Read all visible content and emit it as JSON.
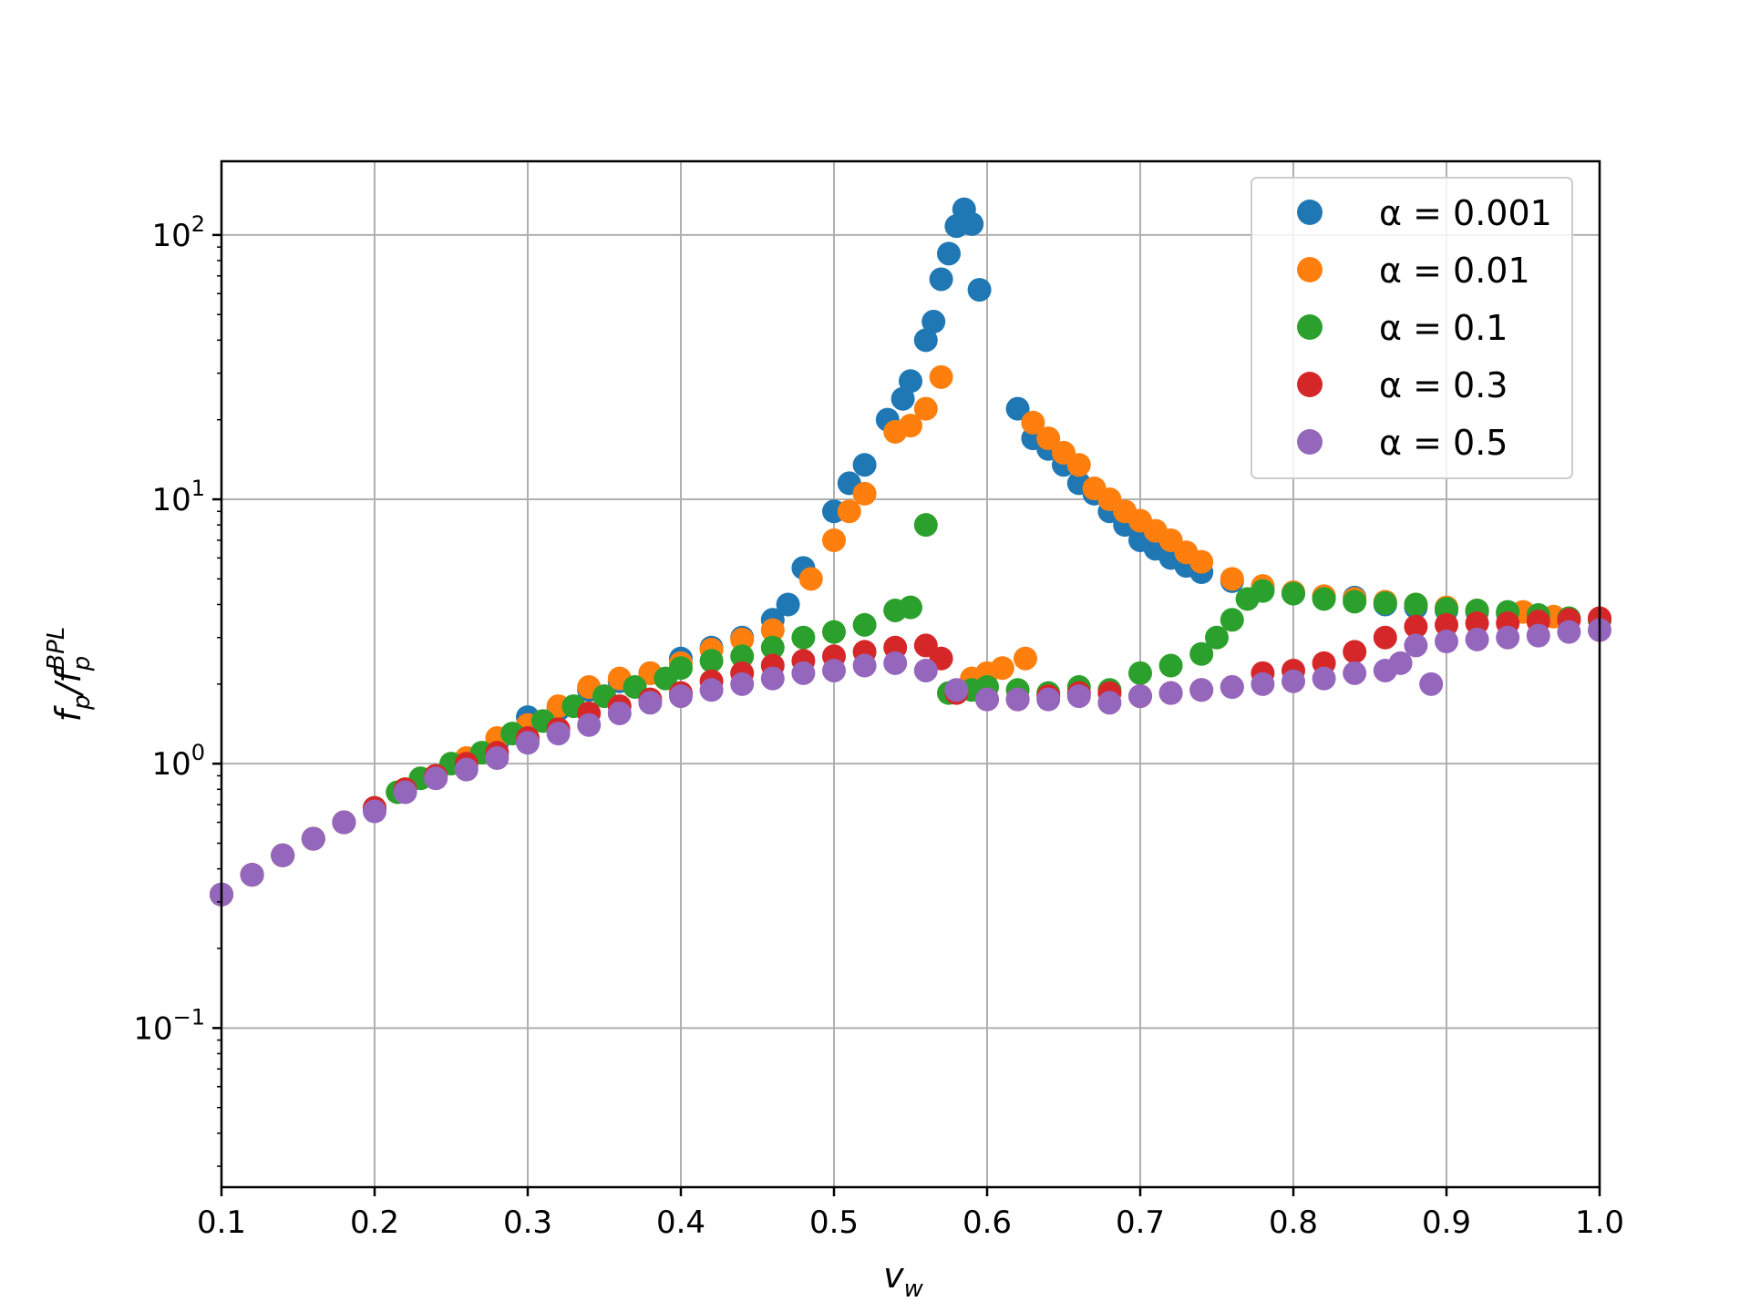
{
  "chart_data": {
    "type": "scatter",
    "title": "",
    "xlabel": "v_w",
    "ylabel": "f_p/f_p^BPL",
    "x_scale": "linear",
    "y_scale": "log",
    "xlim": [
      0.1,
      1.0
    ],
    "ylim": [
      0.025,
      190
    ],
    "grid": true,
    "legend_position": "top-right",
    "x_ticks": [
      "0.1",
      "0.2",
      "0.3",
      "0.4",
      "0.5",
      "0.6",
      "0.7",
      "0.8",
      "0.9",
      "1.0"
    ],
    "y_ticks": [
      {
        "base": "10",
        "exp": "−1",
        "value": 0.1
      },
      {
        "base": "10",
        "exp": "0",
        "value": 1
      },
      {
        "base": "10",
        "exp": "1",
        "value": 10
      },
      {
        "base": "10",
        "exp": "2",
        "value": 100
      }
    ],
    "series": [
      {
        "name": "α = 0.001",
        "color": "#1f77b4",
        "points": [
          [
            0.1,
            0.32
          ],
          [
            0.12,
            0.38
          ],
          [
            0.14,
            0.45
          ],
          [
            0.16,
            0.52
          ],
          [
            0.18,
            0.6
          ],
          [
            0.2,
            0.68
          ],
          [
            0.22,
            0.8
          ],
          [
            0.24,
            0.9
          ],
          [
            0.26,
            1.0
          ],
          [
            0.28,
            1.2
          ],
          [
            0.3,
            1.5
          ],
          [
            0.32,
            1.6
          ],
          [
            0.34,
            1.9
          ],
          [
            0.36,
            2.05
          ],
          [
            0.38,
            2.2
          ],
          [
            0.4,
            2.5
          ],
          [
            0.42,
            2.75
          ],
          [
            0.44,
            3.0
          ],
          [
            0.46,
            3.5
          ],
          [
            0.47,
            4.0
          ],
          [
            0.48,
            5.5
          ],
          [
            0.5,
            9.0
          ],
          [
            0.51,
            11.5
          ],
          [
            0.52,
            13.5
          ],
          [
            0.535,
            20
          ],
          [
            0.545,
            24
          ],
          [
            0.55,
            28
          ],
          [
            0.56,
            40
          ],
          [
            0.565,
            47
          ],
          [
            0.57,
            68
          ],
          [
            0.575,
            85
          ],
          [
            0.58,
            108
          ],
          [
            0.585,
            125
          ],
          [
            0.59,
            110
          ],
          [
            0.595,
            62
          ],
          [
            0.62,
            22
          ],
          [
            0.63,
            17
          ],
          [
            0.64,
            15.5
          ],
          [
            0.65,
            13.5
          ],
          [
            0.66,
            11.5
          ],
          [
            0.67,
            10.5
          ],
          [
            0.68,
            9.0
          ],
          [
            0.69,
            8.0
          ],
          [
            0.7,
            7.0
          ],
          [
            0.71,
            6.5
          ],
          [
            0.72,
            6.0
          ],
          [
            0.73,
            5.6
          ],
          [
            0.74,
            5.3
          ],
          [
            0.76,
            4.9
          ],
          [
            0.78,
            4.6
          ],
          [
            0.8,
            4.4
          ],
          [
            0.82,
            4.3
          ],
          [
            0.84,
            4.25
          ],
          [
            0.86,
            4.0
          ],
          [
            0.88,
            3.9
          ],
          [
            0.9,
            3.8
          ],
          [
            0.92,
            3.75
          ],
          [
            0.94,
            3.7
          ],
          [
            0.96,
            3.6
          ],
          [
            0.98,
            3.5
          ],
          [
            1.0,
            3.5
          ]
        ]
      },
      {
        "name": "α = 0.01",
        "color": "#ff7f0e",
        "points": [
          [
            0.1,
            0.32
          ],
          [
            0.12,
            0.38
          ],
          [
            0.14,
            0.45
          ],
          [
            0.16,
            0.52
          ],
          [
            0.18,
            0.6
          ],
          [
            0.2,
            0.68
          ],
          [
            0.22,
            0.8
          ],
          [
            0.24,
            0.9
          ],
          [
            0.26,
            1.05
          ],
          [
            0.28,
            1.25
          ],
          [
            0.3,
            1.4
          ],
          [
            0.32,
            1.65
          ],
          [
            0.34,
            1.95
          ],
          [
            0.36,
            2.1
          ],
          [
            0.38,
            2.2
          ],
          [
            0.4,
            2.4
          ],
          [
            0.42,
            2.7
          ],
          [
            0.44,
            2.95
          ],
          [
            0.46,
            3.2
          ],
          [
            0.485,
            5.0
          ],
          [
            0.5,
            7.0
          ],
          [
            0.51,
            9.0
          ],
          [
            0.52,
            10.5
          ],
          [
            0.54,
            18
          ],
          [
            0.55,
            19
          ],
          [
            0.56,
            22
          ],
          [
            0.57,
            29
          ],
          [
            0.59,
            2.1
          ],
          [
            0.6,
            2.2
          ],
          [
            0.61,
            2.3
          ],
          [
            0.625,
            2.5
          ],
          [
            0.63,
            19.5
          ],
          [
            0.64,
            17
          ],
          [
            0.65,
            15
          ],
          [
            0.66,
            13.5
          ],
          [
            0.67,
            11
          ],
          [
            0.68,
            10
          ],
          [
            0.69,
            9.0
          ],
          [
            0.7,
            8.3
          ],
          [
            0.71,
            7.6
          ],
          [
            0.72,
            7.0
          ],
          [
            0.73,
            6.3
          ],
          [
            0.74,
            5.8
          ],
          [
            0.76,
            5.0
          ],
          [
            0.78,
            4.7
          ],
          [
            0.8,
            4.45
          ],
          [
            0.82,
            4.3
          ],
          [
            0.84,
            4.2
          ],
          [
            0.86,
            4.1
          ],
          [
            0.88,
            4.0
          ],
          [
            0.9,
            3.9
          ],
          [
            0.92,
            3.8
          ],
          [
            0.95,
            3.75
          ],
          [
            0.97,
            3.6
          ],
          [
            1.0,
            3.5
          ]
        ]
      },
      {
        "name": "α = 0.1",
        "color": "#2ca02c",
        "points": [
          [
            0.1,
            0.32
          ],
          [
            0.12,
            0.38
          ],
          [
            0.14,
            0.45
          ],
          [
            0.16,
            0.52
          ],
          [
            0.18,
            0.6
          ],
          [
            0.2,
            0.68
          ],
          [
            0.215,
            0.78
          ],
          [
            0.23,
            0.88
          ],
          [
            0.25,
            1.0
          ],
          [
            0.27,
            1.1
          ],
          [
            0.29,
            1.3
          ],
          [
            0.31,
            1.45
          ],
          [
            0.33,
            1.65
          ],
          [
            0.35,
            1.8
          ],
          [
            0.37,
            1.95
          ],
          [
            0.39,
            2.1
          ],
          [
            0.4,
            2.3
          ],
          [
            0.42,
            2.45
          ],
          [
            0.44,
            2.55
          ],
          [
            0.46,
            2.75
          ],
          [
            0.48,
            3.0
          ],
          [
            0.5,
            3.15
          ],
          [
            0.52,
            3.35
          ],
          [
            0.54,
            3.8
          ],
          [
            0.55,
            3.9
          ],
          [
            0.56,
            8.0
          ],
          [
            0.575,
            1.85
          ],
          [
            0.59,
            1.9
          ],
          [
            0.6,
            1.95
          ],
          [
            0.62,
            1.9
          ],
          [
            0.64,
            1.85
          ],
          [
            0.66,
            1.95
          ],
          [
            0.68,
            1.9
          ],
          [
            0.7,
            2.2
          ],
          [
            0.72,
            2.35
          ],
          [
            0.74,
            2.6
          ],
          [
            0.75,
            3.0
          ],
          [
            0.76,
            3.5
          ],
          [
            0.77,
            4.2
          ],
          [
            0.78,
            4.5
          ],
          [
            0.8,
            4.4
          ],
          [
            0.82,
            4.2
          ],
          [
            0.84,
            4.1
          ],
          [
            0.86,
            4.05
          ],
          [
            0.88,
            4.0
          ],
          [
            0.9,
            3.85
          ],
          [
            0.92,
            3.8
          ],
          [
            0.94,
            3.75
          ],
          [
            0.96,
            3.65
          ],
          [
            0.98,
            3.55
          ],
          [
            1.0,
            3.5
          ]
        ]
      },
      {
        "name": "α = 0.3",
        "color": "#d62728",
        "points": [
          [
            0.1,
            0.32
          ],
          [
            0.12,
            0.38
          ],
          [
            0.14,
            0.45
          ],
          [
            0.16,
            0.52
          ],
          [
            0.18,
            0.6
          ],
          [
            0.2,
            0.68
          ],
          [
            0.22,
            0.8
          ],
          [
            0.24,
            0.9
          ],
          [
            0.26,
            1.0
          ],
          [
            0.28,
            1.1
          ],
          [
            0.3,
            1.25
          ],
          [
            0.32,
            1.35
          ],
          [
            0.34,
            1.55
          ],
          [
            0.36,
            1.65
          ],
          [
            0.38,
            1.75
          ],
          [
            0.4,
            1.85
          ],
          [
            0.42,
            2.05
          ],
          [
            0.44,
            2.2
          ],
          [
            0.46,
            2.35
          ],
          [
            0.48,
            2.45
          ],
          [
            0.5,
            2.55
          ],
          [
            0.52,
            2.65
          ],
          [
            0.54,
            2.75
          ],
          [
            0.56,
            2.8
          ],
          [
            0.57,
            2.5
          ],
          [
            0.58,
            1.85
          ],
          [
            0.6,
            1.75
          ],
          [
            0.62,
            1.75
          ],
          [
            0.64,
            1.8
          ],
          [
            0.66,
            1.85
          ],
          [
            0.68,
            1.85
          ],
          [
            0.7,
            1.8
          ],
          [
            0.72,
            1.85
          ],
          [
            0.74,
            1.9
          ],
          [
            0.76,
            1.95
          ],
          [
            0.78,
            2.2
          ],
          [
            0.8,
            2.25
          ],
          [
            0.82,
            2.4
          ],
          [
            0.84,
            2.65
          ],
          [
            0.86,
            3.0
          ],
          [
            0.88,
            3.3
          ],
          [
            0.9,
            3.35
          ],
          [
            0.92,
            3.4
          ],
          [
            0.94,
            3.4
          ],
          [
            0.96,
            3.45
          ],
          [
            0.98,
            3.5
          ],
          [
            1.0,
            3.55
          ]
        ]
      },
      {
        "name": "α = 0.5",
        "color": "#9467bd",
        "points": [
          [
            0.1,
            0.32
          ],
          [
            0.12,
            0.38
          ],
          [
            0.14,
            0.45
          ],
          [
            0.16,
            0.52
          ],
          [
            0.18,
            0.6
          ],
          [
            0.2,
            0.66
          ],
          [
            0.22,
            0.78
          ],
          [
            0.24,
            0.88
          ],
          [
            0.26,
            0.95
          ],
          [
            0.28,
            1.05
          ],
          [
            0.3,
            1.2
          ],
          [
            0.32,
            1.3
          ],
          [
            0.34,
            1.4
          ],
          [
            0.36,
            1.55
          ],
          [
            0.38,
            1.7
          ],
          [
            0.4,
            1.8
          ],
          [
            0.42,
            1.9
          ],
          [
            0.44,
            2.0
          ],
          [
            0.46,
            2.1
          ],
          [
            0.48,
            2.2
          ],
          [
            0.5,
            2.25
          ],
          [
            0.52,
            2.35
          ],
          [
            0.54,
            2.4
          ],
          [
            0.56,
            2.25
          ],
          [
            0.58,
            1.9
          ],
          [
            0.6,
            1.75
          ],
          [
            0.62,
            1.75
          ],
          [
            0.64,
            1.75
          ],
          [
            0.66,
            1.8
          ],
          [
            0.68,
            1.7
          ],
          [
            0.7,
            1.8
          ],
          [
            0.72,
            1.85
          ],
          [
            0.74,
            1.9
          ],
          [
            0.76,
            1.95
          ],
          [
            0.78,
            2.0
          ],
          [
            0.8,
            2.05
          ],
          [
            0.82,
            2.1
          ],
          [
            0.84,
            2.2
          ],
          [
            0.86,
            2.25
          ],
          [
            0.87,
            2.4
          ],
          [
            0.88,
            2.8
          ],
          [
            0.89,
            2.0
          ],
          [
            0.9,
            2.9
          ],
          [
            0.92,
            2.95
          ],
          [
            0.94,
            3.0
          ],
          [
            0.96,
            3.05
          ],
          [
            0.98,
            3.15
          ],
          [
            1.0,
            3.2
          ]
        ]
      }
    ]
  }
}
